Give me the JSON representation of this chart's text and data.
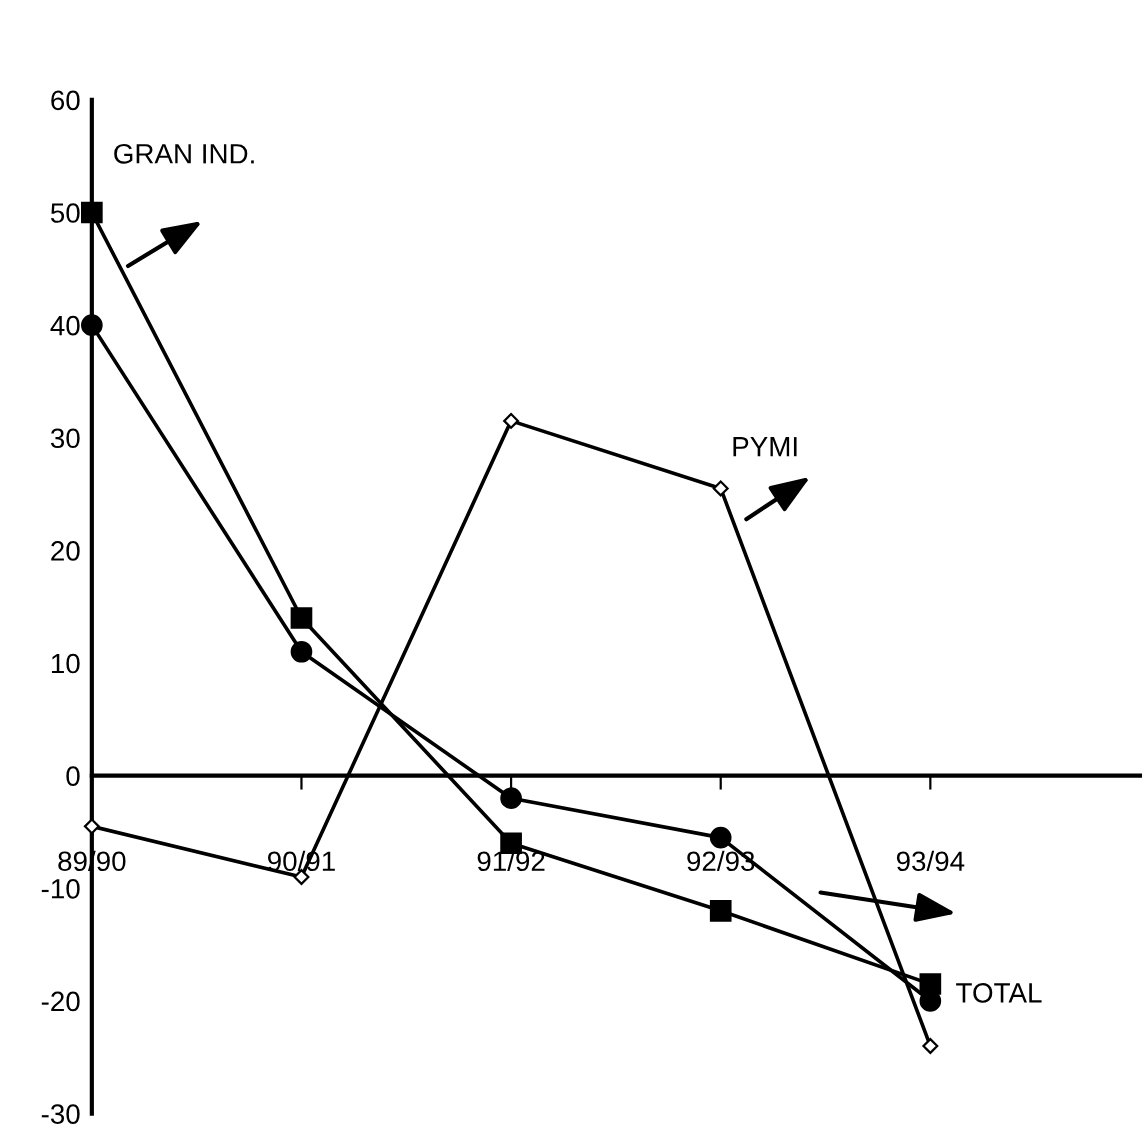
{
  "chart_data": {
    "type": "line",
    "categories": [
      "89/90",
      "90/91",
      "91/92",
      "92/93",
      "93/94"
    ],
    "series": [
      {
        "name": "GRAN IND.",
        "color": "#000000",
        "marker": "square",
        "values": [
          50,
          14,
          -6,
          -12,
          -18.5
        ]
      },
      {
        "name": "TOTAL",
        "color": "#000000",
        "marker": "circle",
        "values": [
          40,
          11,
          -2,
          -5.5,
          -20
        ]
      },
      {
        "name": "PYMI",
        "color": "#000000",
        "marker": "diamond",
        "values": [
          -4.5,
          -9,
          31.5,
          25.5,
          -24
        ]
      }
    ],
    "ylim": [
      -30,
      60
    ],
    "yticks": [
      -30,
      -20,
      -10,
      0,
      10,
      20,
      30,
      40,
      50,
      60
    ],
    "legend": false
  }
}
